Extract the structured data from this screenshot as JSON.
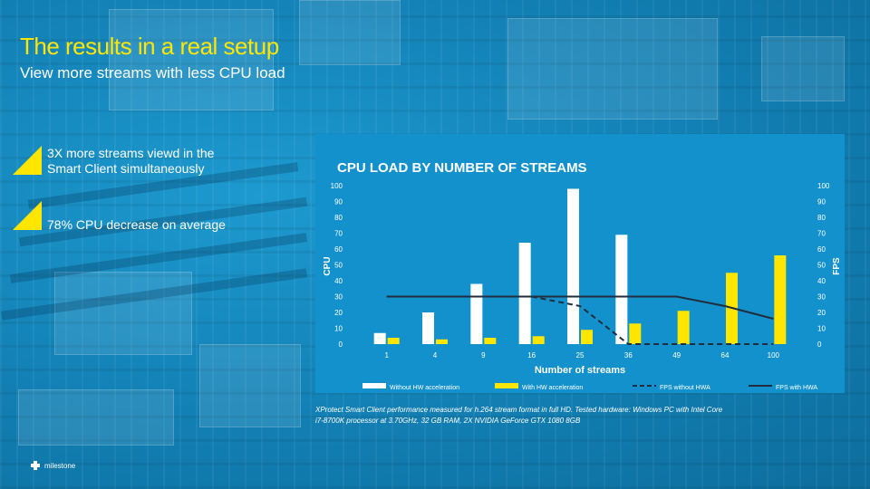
{
  "slide": {
    "title": "The results in a real setup",
    "subtitle": "View more streams with less CPU load",
    "bullets": [
      {
        "line1": "3X more streams viewd in the",
        "line2": "Smart Client simultaneously"
      },
      {
        "line1": "78% CPU decrease on average",
        "line2": ""
      }
    ],
    "footnote_line1": "XProtect Smart Client performance measured for h.264 stream format in full HD. Tested hardware: Windows PC with Intel Core",
    "footnote_line2": "i7-8700K processor at 3.70GHz, 32 GB RAM, 2X NVIDIA GeForce GTX 1080 8GB",
    "logo_text": "milestone",
    "colors": {
      "accent": "#ffe600",
      "panel": "#1391cc",
      "background": "#127fb3"
    }
  },
  "chart_data": {
    "type": "bar",
    "title": "CPU LOAD BY NUMBER OF STREAMS",
    "xlabel": "Number of streams",
    "ylabel": "CPU",
    "y2label": "FPS",
    "ylim": [
      0,
      100
    ],
    "y2lim": [
      0,
      100
    ],
    "yticks": [
      0,
      10,
      20,
      30,
      40,
      50,
      60,
      70,
      80,
      90,
      100
    ],
    "categories": [
      "1",
      "4",
      "9",
      "16",
      "25",
      "36",
      "49",
      "64",
      "100"
    ],
    "series": [
      {
        "name": "Without HW acceleration",
        "kind": "bar",
        "color": "#ffffff",
        "values": [
          7,
          20,
          38,
          64,
          98,
          69,
          null,
          null,
          null
        ]
      },
      {
        "name": "With HW acceleration",
        "kind": "bar",
        "color": "#ffe600",
        "values": [
          4,
          3,
          4,
          5,
          9,
          13,
          21,
          45,
          56
        ]
      },
      {
        "name": "FPS without HWA",
        "kind": "line",
        "style": "dashed",
        "color": "#1f2d3d",
        "values": [
          30,
          30,
          30,
          30,
          24,
          0,
          0,
          0,
          0
        ]
      },
      {
        "name": "FPS with HWA",
        "kind": "line",
        "style": "solid",
        "color": "#1f2d3d",
        "values": [
          30,
          30,
          30,
          30,
          30,
          30,
          30,
          24,
          16
        ]
      }
    ],
    "legend_position": "bottom"
  }
}
